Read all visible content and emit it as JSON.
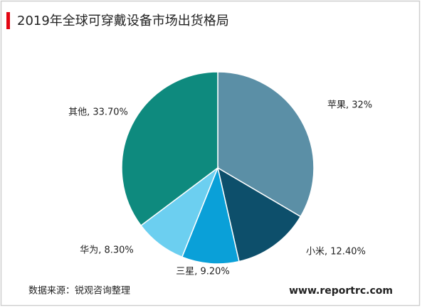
{
  "chart_data": {
    "type": "pie",
    "title": "2019年全球可穿戴设备市场出货格局",
    "values": [
      32,
      12.4,
      9.2,
      8.3,
      33.7
    ],
    "value_labels": [
      "苹果, 32%",
      "小米, 12.40%",
      "三星, 9.20%",
      "华为, 8.30%",
      "其他, 33.70%"
    ],
    "colors": [
      "#5b8fa6",
      "#0d4f6b",
      "#0aa0d8",
      "#6ccff0",
      "#0e8a7e"
    ],
    "source": "数据来源：锐观咨询整理",
    "website": "www.reportrc.com"
  }
}
